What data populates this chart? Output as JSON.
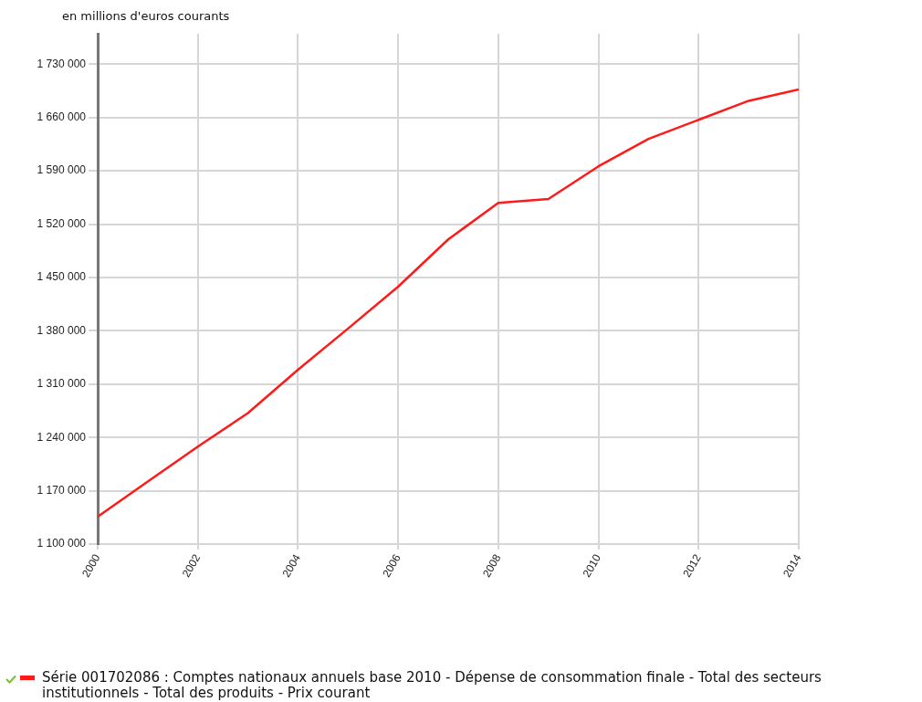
{
  "chart_data": {
    "type": "line",
    "ylabel": "en millions d'euros courants",
    "x": [
      2000,
      2001,
      2002,
      2003,
      2004,
      2005,
      2006,
      2007,
      2008,
      2009,
      2010,
      2011,
      2012,
      2013,
      2014
    ],
    "series": [
      {
        "name": "Série 001702086 : Comptes nationaux annuels base 2010 - Dépense de consommation finale - Total des secteurs institutionnels - Total des produits - Prix courant",
        "color": "#ff1a1a",
        "values": [
          1136000,
          1182000,
          1228000,
          1272000,
          1329000,
          1383000,
          1438000,
          1500000,
          1548000,
          1553000,
          1596000,
          1632000,
          1657000,
          1682000,
          1697000
        ]
      }
    ],
    "xlim": [
      2000,
      2014
    ],
    "xticks": [
      2000,
      2002,
      2004,
      2006,
      2008,
      2010,
      2012,
      2014
    ],
    "ylim": [
      1100000,
      1770000
    ],
    "yticks": [
      {
        "value": 1100000,
        "label": "1 100 000"
      },
      {
        "value": 1170000,
        "label": "1 170 000"
      },
      {
        "value": 1240000,
        "label": "1 240 000"
      },
      {
        "value": 1310000,
        "label": "1 310 000"
      },
      {
        "value": 1380000,
        "label": "1 380 000"
      },
      {
        "value": 1450000,
        "label": "1 450 000"
      },
      {
        "value": 1520000,
        "label": "1 520 000"
      },
      {
        "value": 1590000,
        "label": "1 590 000"
      },
      {
        "value": 1660000,
        "label": "1 660 000"
      },
      {
        "value": 1730000,
        "label": "1 730 000"
      }
    ],
    "grid": true,
    "legend": "bottom left",
    "marker": "none",
    "line_style": "solid"
  }
}
